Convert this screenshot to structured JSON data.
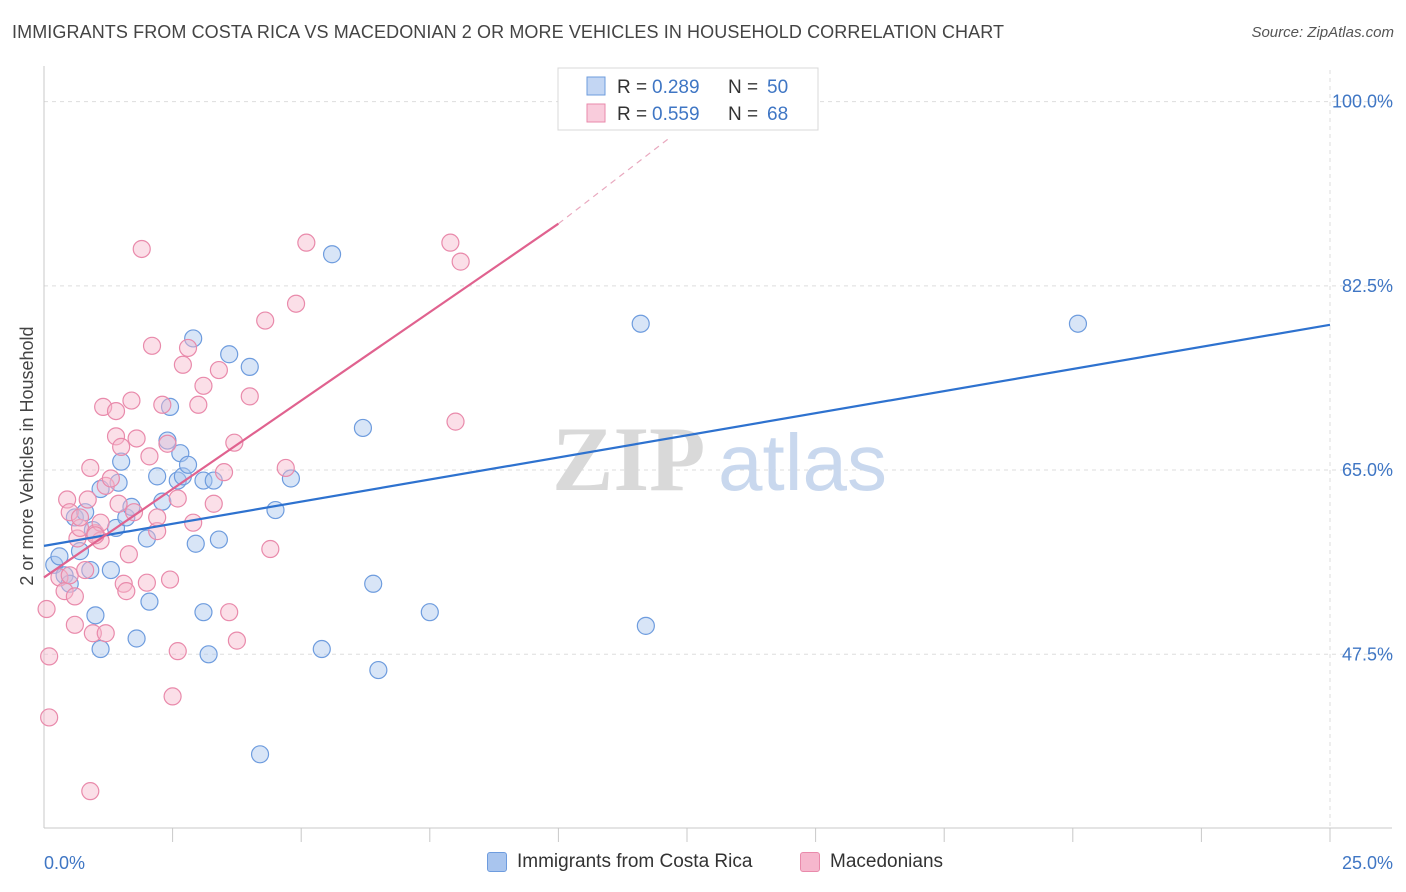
{
  "title": "IMMIGRANTS FROM COSTA RICA VS MACEDONIAN 2 OR MORE VEHICLES IN HOUSEHOLD CORRELATION CHART",
  "source": "Source: ZipAtlas.com",
  "colors": {
    "blue_fill": "#a9c5ee",
    "blue_stroke": "#6e9cde",
    "blue_line": "#2e72cf",
    "pink_fill": "#f6b7cd",
    "pink_stroke": "#e98aab",
    "pink_line": "#e0628f",
    "tick_label": "#3f76c4",
    "grid": "#dddddd",
    "watermark": "#d9d9d9"
  },
  "chart_data": {
    "type": "scatter",
    "title": "IMMIGRANTS FROM COSTA RICA VS MACEDONIAN 2 OR MORE VEHICLES IN HOUSEHOLD CORRELATION CHART",
    "xlabel": "",
    "ylabel": "2 or more Vehicles in Household",
    "xlim": [
      0,
      25
    ],
    "ylim": [
      31,
      103
    ],
    "x_tick_labels": [
      {
        "value": 0,
        "label": "0.0%"
      },
      {
        "value": 25,
        "label": "25.0%"
      }
    ],
    "y_tick_labels": [
      {
        "value": 100,
        "label": "100.0%"
      },
      {
        "value": 82.5,
        "label": "82.5%"
      },
      {
        "value": 65,
        "label": "65.0%"
      },
      {
        "value": 47.5,
        "label": "47.5%"
      }
    ],
    "x_minor_ticks": [
      2.5,
      5,
      7.5,
      10,
      12.5,
      15,
      17.5,
      20,
      22.5,
      25
    ],
    "watermark": {
      "zip": "ZIP",
      "atlas": "atlas"
    },
    "legend_top": [
      {
        "r_label": "R =",
        "r_value": "0.289",
        "n_label": "N =",
        "n_value": "50"
      },
      {
        "r_label": "R =",
        "r_value": "0.559",
        "n_label": "N =",
        "n_value": "68"
      }
    ],
    "series": [
      {
        "name": "Immigrants from Costa Rica",
        "color_key": "blue",
        "trend": {
          "x0": 0,
          "y0": 57.8,
          "x1": 25,
          "y1": 78.8
        },
        "points": [
          [
            0.2,
            56
          ],
          [
            0.3,
            56.8
          ],
          [
            0.4,
            55
          ],
          [
            0.5,
            54.2
          ],
          [
            0.6,
            60.5
          ],
          [
            0.7,
            57.3
          ],
          [
            0.8,
            61
          ],
          [
            0.9,
            55.5
          ],
          [
            0.95,
            59.3
          ],
          [
            1.0,
            51.2
          ],
          [
            1.1,
            48
          ],
          [
            1.1,
            63.2
          ],
          [
            1.3,
            55.5
          ],
          [
            1.4,
            59.5
          ],
          [
            1.45,
            63.8
          ],
          [
            1.5,
            65.8
          ],
          [
            1.6,
            60.5
          ],
          [
            1.7,
            61.5
          ],
          [
            1.8,
            49
          ],
          [
            2.0,
            58.5
          ],
          [
            2.05,
            52.5
          ],
          [
            2.2,
            64.4
          ],
          [
            2.3,
            62
          ],
          [
            2.4,
            67.8
          ],
          [
            2.45,
            71
          ],
          [
            2.6,
            64
          ],
          [
            2.65,
            66.6
          ],
          [
            2.7,
            64.4
          ],
          [
            2.8,
            65.5
          ],
          [
            2.9,
            77.5
          ],
          [
            2.95,
            58
          ],
          [
            3.1,
            64
          ],
          [
            3.1,
            51.5
          ],
          [
            3.2,
            47.5
          ],
          [
            3.3,
            64
          ],
          [
            3.4,
            58.4
          ],
          [
            3.6,
            76
          ],
          [
            4.0,
            74.8
          ],
          [
            4.2,
            38
          ],
          [
            4.5,
            61.2
          ],
          [
            4.8,
            64.2
          ],
          [
            5.4,
            48
          ],
          [
            5.6,
            85.5
          ],
          [
            6.2,
            69
          ],
          [
            6.4,
            54.2
          ],
          [
            6.5,
            46
          ],
          [
            7.5,
            51.5
          ],
          [
            11.6,
            78.9
          ],
          [
            11.7,
            50.2
          ],
          [
            20.1,
            78.9
          ]
        ]
      },
      {
        "name": "Macedonians",
        "color_key": "pink",
        "trend": {
          "x0": 0,
          "y0": 54.8,
          "x1": 10,
          "y1": 88.4
        },
        "trend_dashed": {
          "x0": 10,
          "y0": 88.4,
          "x1": 12.2,
          "y1": 96.7
        },
        "points": [
          [
            0.05,
            51.8
          ],
          [
            0.1,
            47.3
          ],
          [
            0.1,
            41.5
          ],
          [
            0.3,
            54.8
          ],
          [
            0.4,
            53.5
          ],
          [
            0.45,
            62.2
          ],
          [
            0.5,
            61
          ],
          [
            0.5,
            55
          ],
          [
            0.6,
            50.3
          ],
          [
            0.6,
            53
          ],
          [
            0.65,
            58.5
          ],
          [
            0.7,
            59.5
          ],
          [
            0.7,
            60.5
          ],
          [
            0.8,
            55.5
          ],
          [
            0.85,
            62.2
          ],
          [
            0.9,
            65.2
          ],
          [
            0.9,
            34.5
          ],
          [
            0.95,
            49.5
          ],
          [
            1.0,
            59
          ],
          [
            1.1,
            60
          ],
          [
            1.1,
            58.3
          ],
          [
            1.15,
            71
          ],
          [
            1.2,
            49.5
          ],
          [
            1.2,
            63.5
          ],
          [
            1.3,
            64.2
          ],
          [
            1.4,
            68.2
          ],
          [
            1.4,
            70.6
          ],
          [
            1.45,
            61.8
          ],
          [
            1.5,
            67.2
          ],
          [
            1.55,
            54.2
          ],
          [
            1.6,
            53.5
          ],
          [
            1.65,
            57
          ],
          [
            1.7,
            71.6
          ],
          [
            1.75,
            61
          ],
          [
            1.8,
            68
          ],
          [
            1.9,
            86
          ],
          [
            2.0,
            54.3
          ],
          [
            2.05,
            66.3
          ],
          [
            2.1,
            76.8
          ],
          [
            2.2,
            59.2
          ],
          [
            2.3,
            71.2
          ],
          [
            2.4,
            67.5
          ],
          [
            2.45,
            54.6
          ],
          [
            2.5,
            43.5
          ],
          [
            2.6,
            47.8
          ],
          [
            2.6,
            62.3
          ],
          [
            2.7,
            75
          ],
          [
            2.8,
            76.6
          ],
          [
            2.9,
            60
          ],
          [
            3.0,
            71.2
          ],
          [
            3.1,
            73
          ],
          [
            3.3,
            61.8
          ],
          [
            3.4,
            74.5
          ],
          [
            3.5,
            64.8
          ],
          [
            3.6,
            51.5
          ],
          [
            3.7,
            67.6
          ],
          [
            3.75,
            48.8
          ],
          [
            4.0,
            72
          ],
          [
            4.3,
            79.2
          ],
          [
            4.4,
            57.5
          ],
          [
            4.7,
            65.2
          ],
          [
            4.9,
            80.8
          ],
          [
            5.1,
            86.6
          ],
          [
            7.9,
            86.6
          ],
          [
            8.0,
            69.6
          ],
          [
            8.1,
            84.8
          ],
          [
            2.2,
            60.5
          ],
          [
            1.0,
            58.8
          ]
        ]
      }
    ]
  },
  "legend_bottom": [
    {
      "label": "Immigrants from Costa Rica",
      "color_key": "blue"
    },
    {
      "label": "Macedonians",
      "color_key": "pink"
    }
  ]
}
